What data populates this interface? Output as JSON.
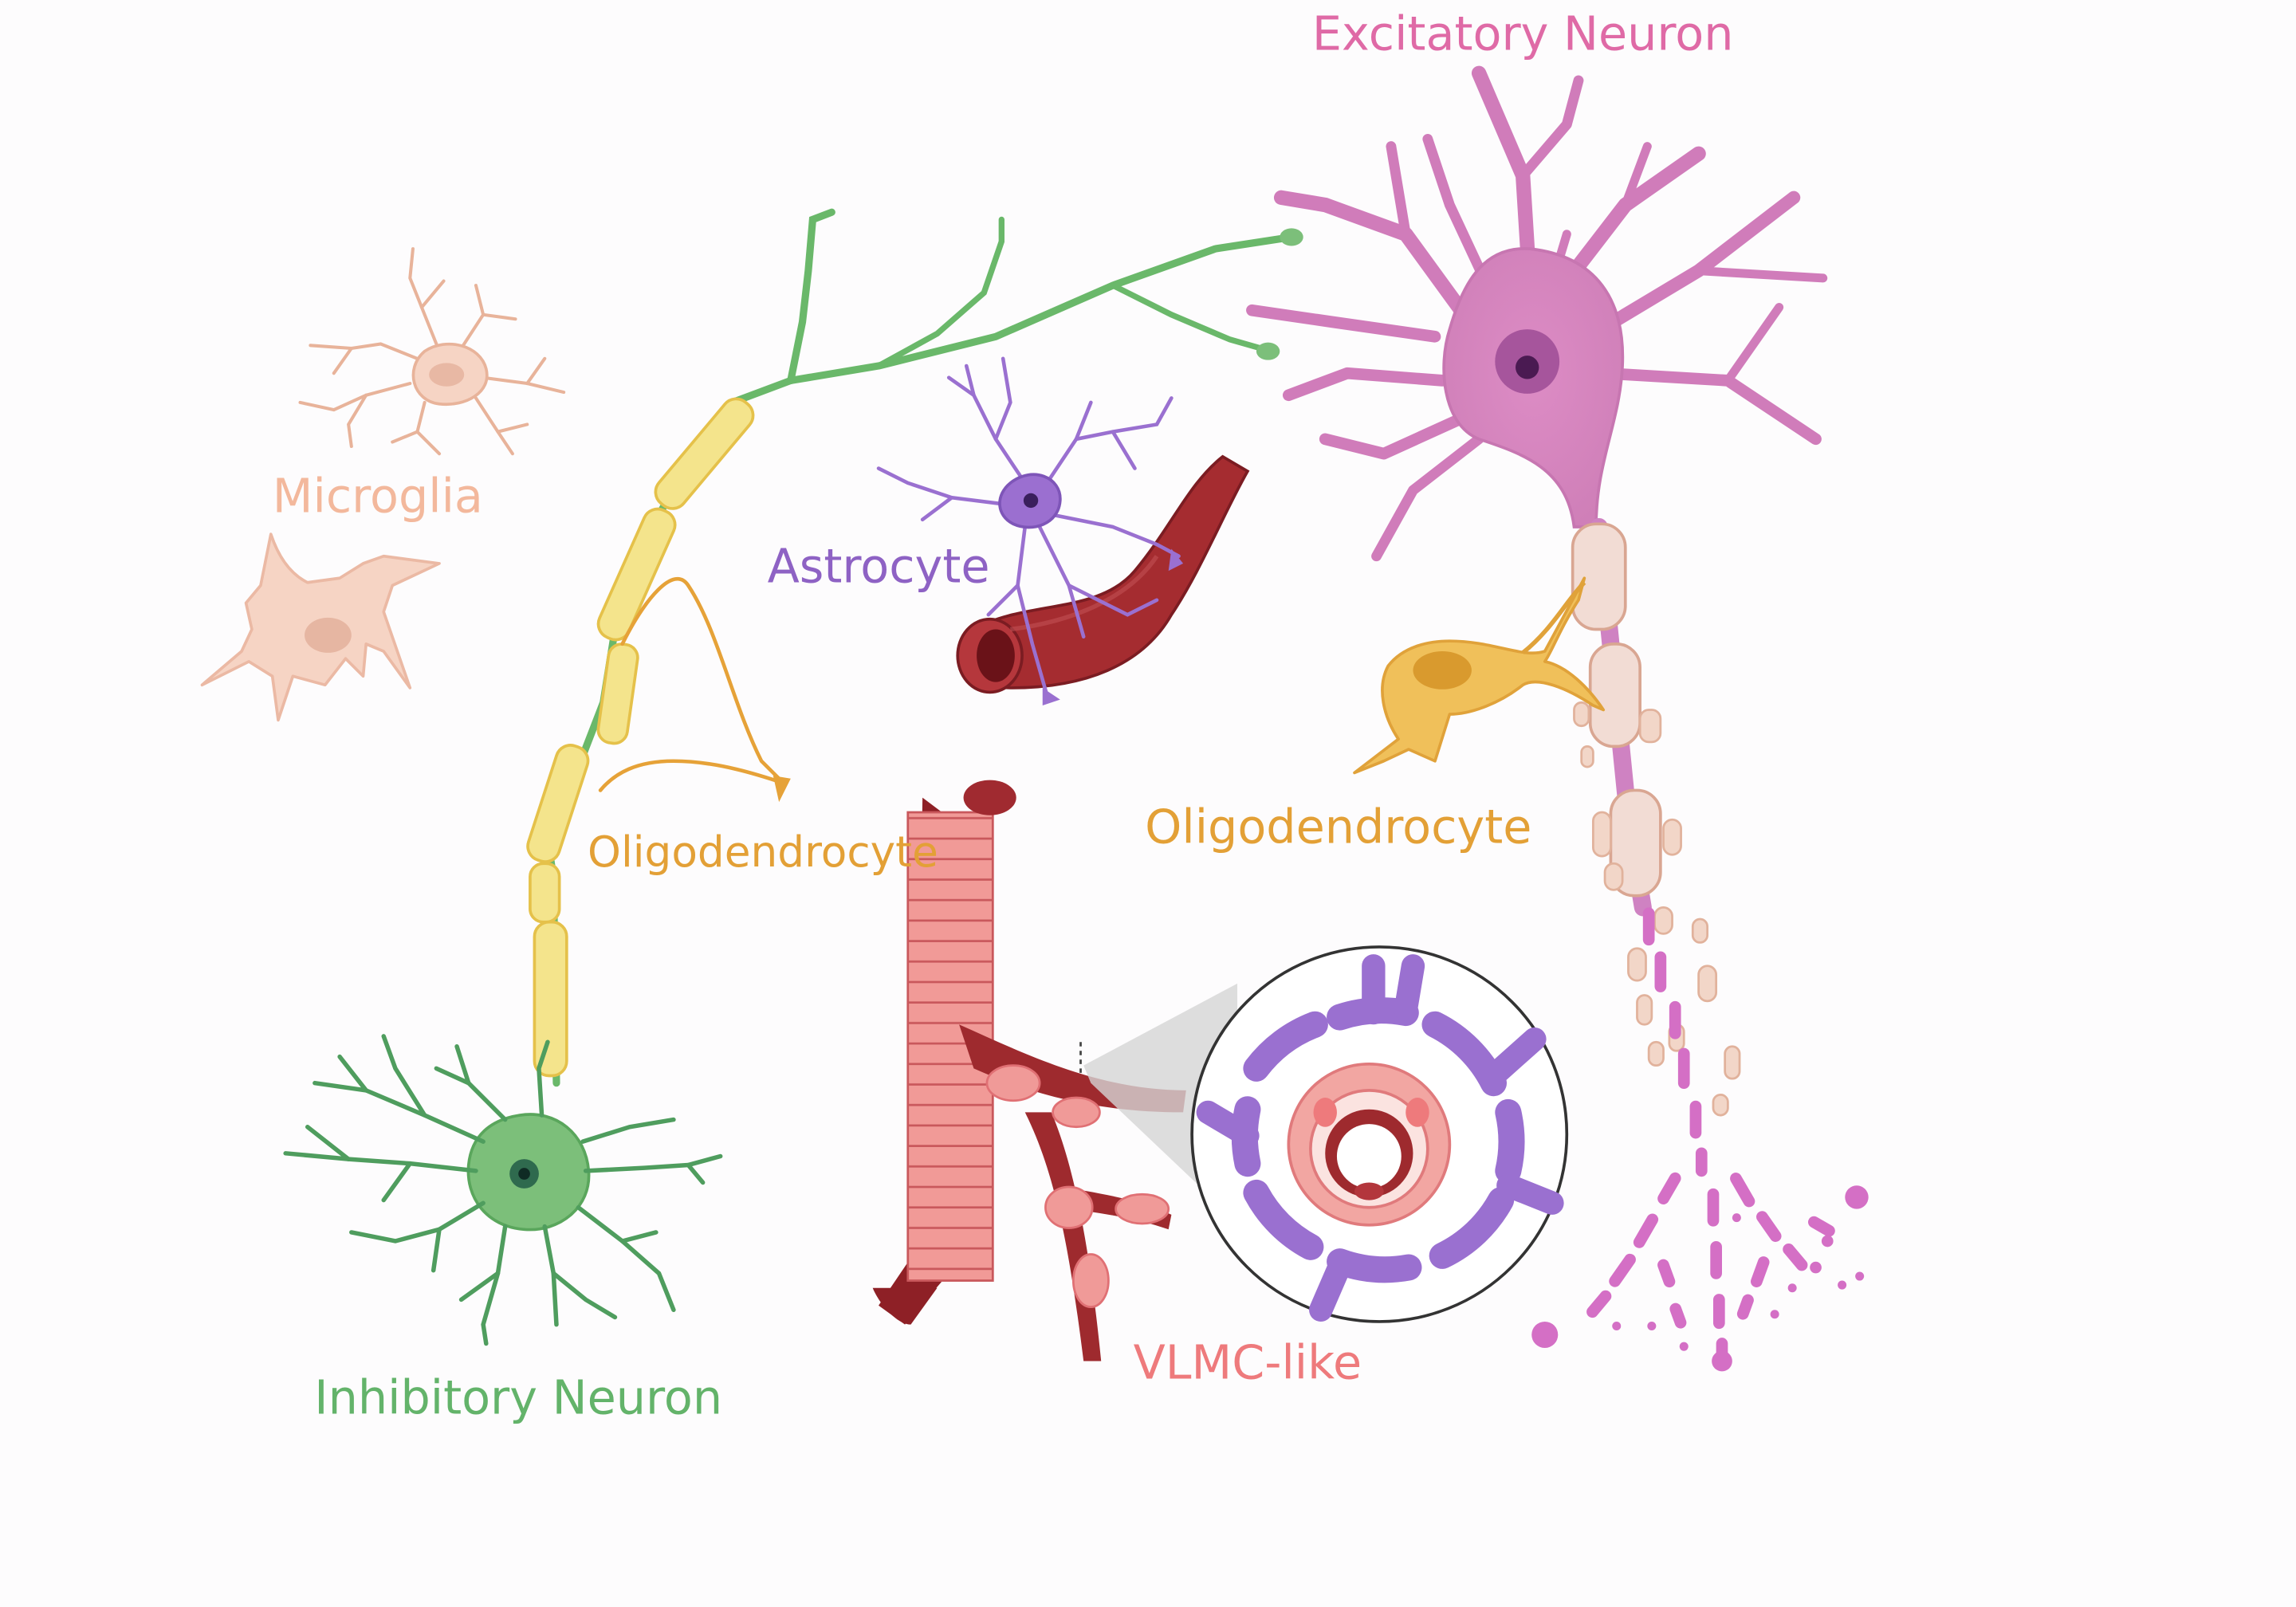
{
  "labels": {
    "excitatory": "Excitatory Neuron",
    "microglia": "Microglia",
    "astrocyte": "Astrocyte",
    "oligo_left": "Oligodendrocyte",
    "oligo_right": "Oligodendrocyte",
    "vlmc": "VLMC-like",
    "inhibitory": "Inhibitory Neuron"
  },
  "colors": {
    "excitatory": "#df6aa6",
    "excitatory_fill": "#d58cc0",
    "microglia": "#f3b89c",
    "microglia_fill": "#f6d4c4",
    "astrocyte": "#8e62c4",
    "oligodendrocyte": "#e3a036",
    "oligo_fill": "#f0c05a",
    "myelin": "#f4e48c",
    "inhibitory": "#63b36a",
    "inhibitory_fill": "#7cbf7a",
    "vessel": "#9e2a2e",
    "vlmc": "#ee7a7c",
    "vlmc_fill": "#f09a98"
  },
  "icons": {
    "excitatory": "excitatory-neuron-icon",
    "microglia": "microglia-icon",
    "astrocyte": "astrocyte-icon",
    "oligodendrocyte": "oligodendrocyte-icon",
    "inhibitory": "inhibitory-neuron-icon",
    "vessel": "blood-vessel-icon",
    "zoom": "vessel-cross-section-icon"
  }
}
